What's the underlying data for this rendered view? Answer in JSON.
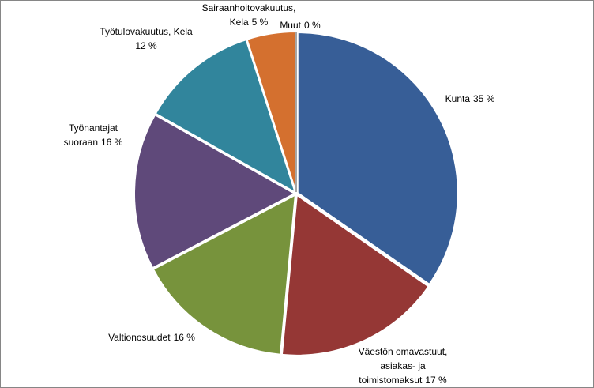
{
  "chart_data": {
    "type": "pie",
    "categories": [
      "Kunta",
      "Väestön omavastuut, asiakas- ja toimistomaksut",
      "Valtionosuudet",
      "Työnantajat suoraan",
      "Työtulovakuutus, Kela",
      "Sairaanhoitovakuutus, Kela",
      "Muut"
    ],
    "values": [
      35,
      17,
      16,
      16,
      12,
      5,
      0
    ],
    "value_labels": [
      "35 %",
      "17 %",
      "16 %",
      "16 %",
      "12 %",
      "5 %",
      "0 %"
    ],
    "colors": [
      "#375e97",
      "#953735",
      "#77933c",
      "#5f497a",
      "#31859c",
      "#d4702f",
      "#a6a6a6"
    ]
  }
}
